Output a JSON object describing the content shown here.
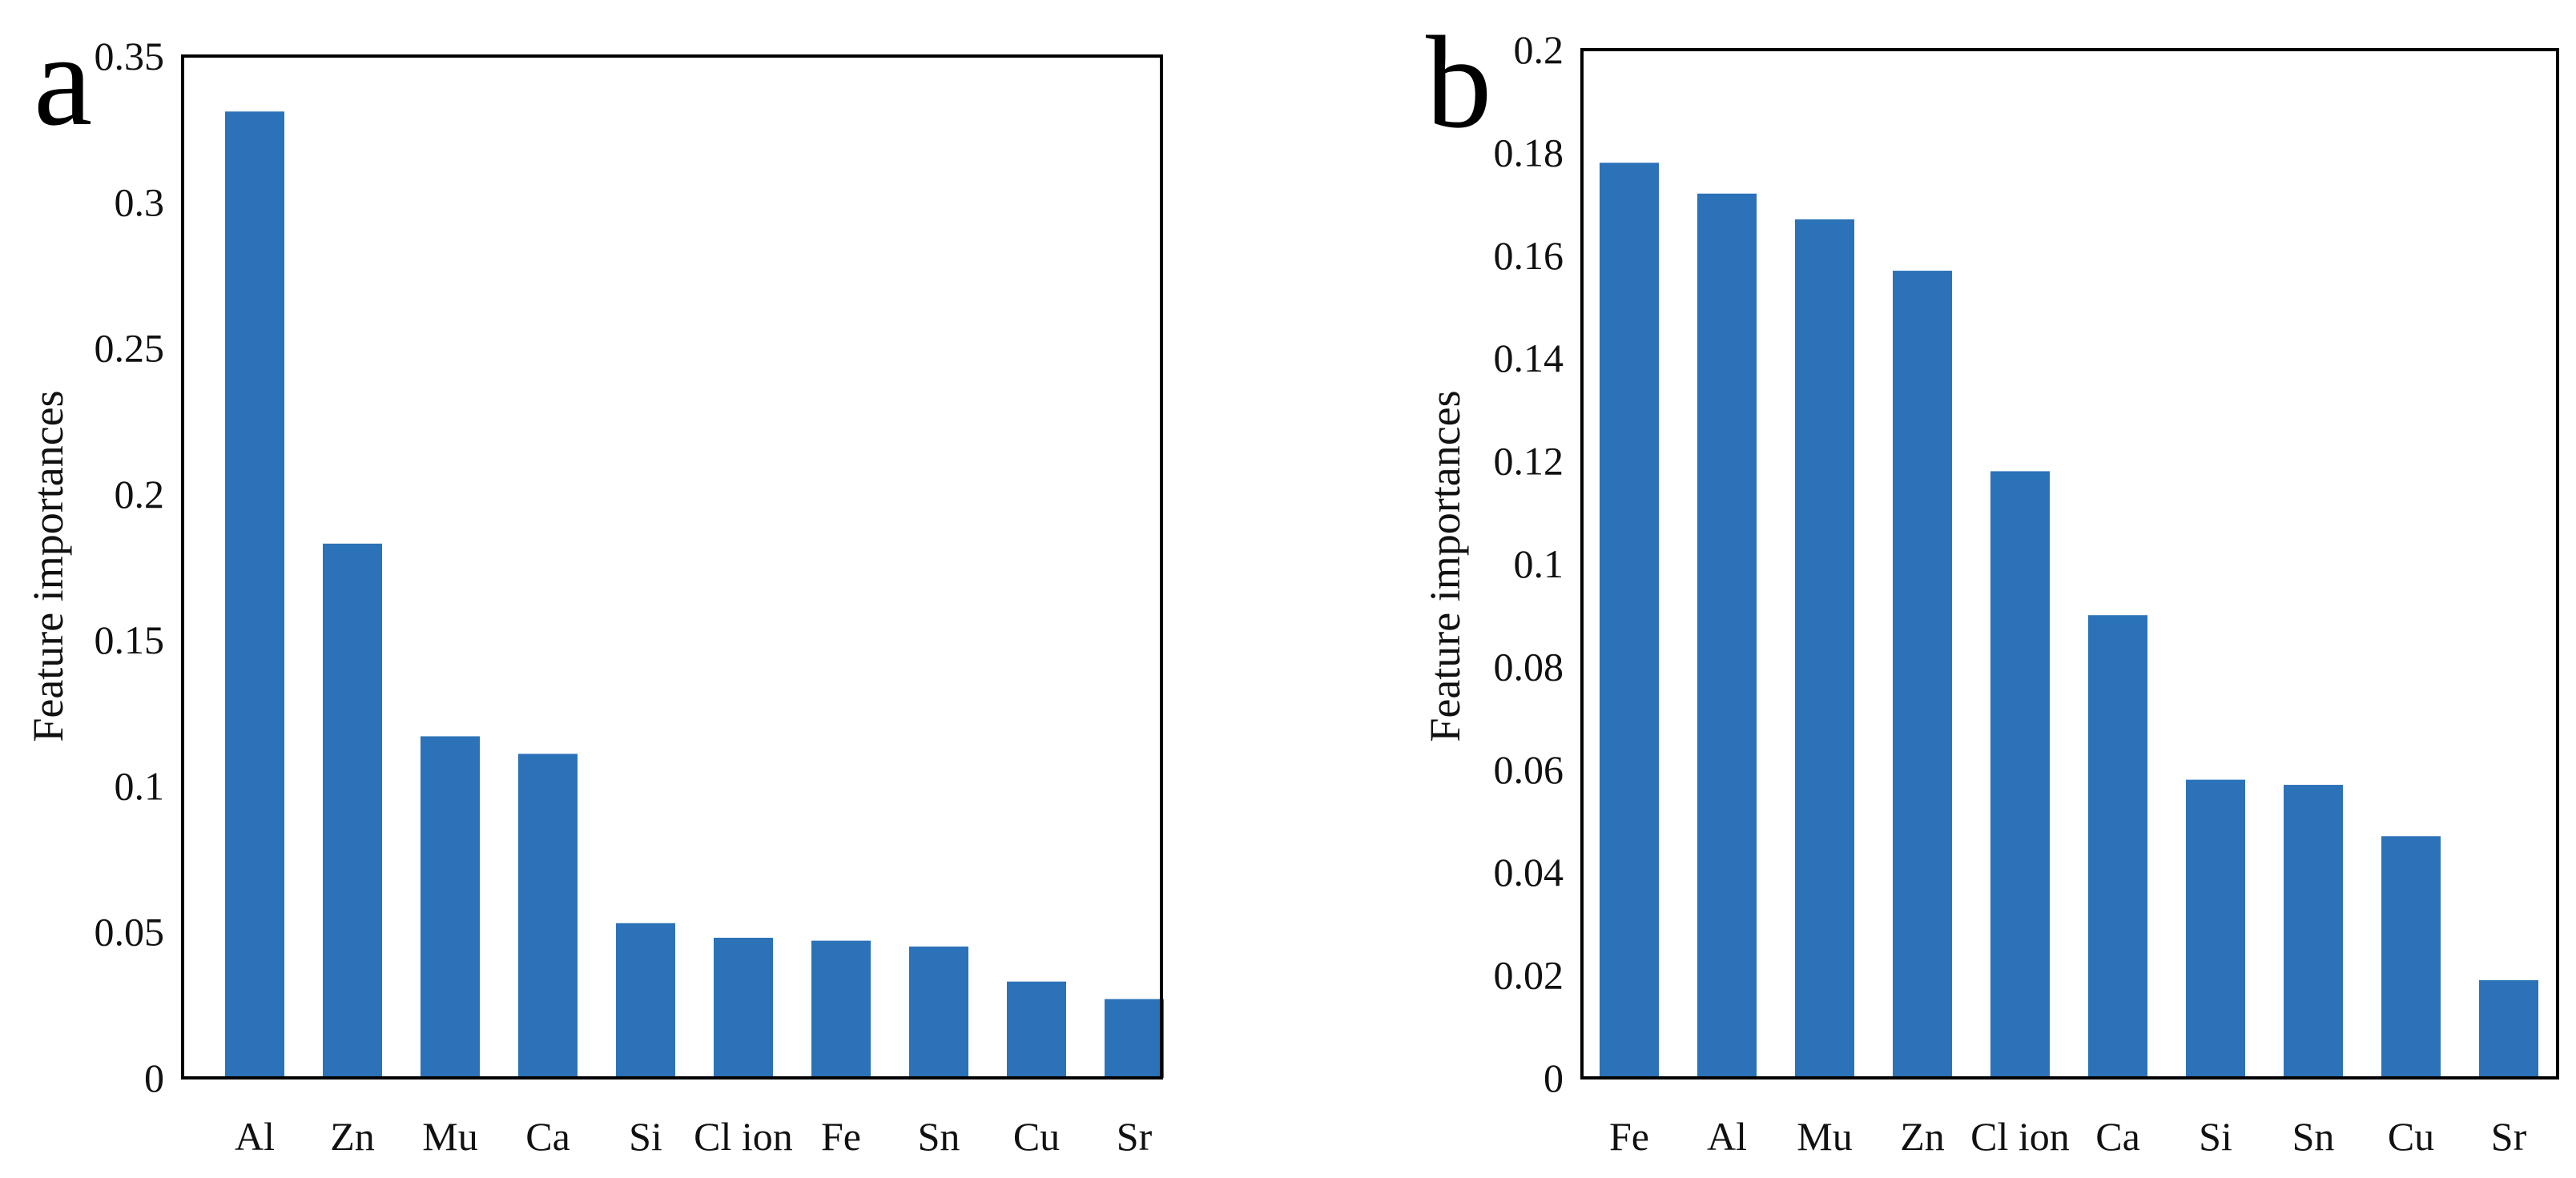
{
  "figure": {
    "colors": {
      "bar": "#2b72b8",
      "frame": "#000000",
      "text": "#111111"
    }
  },
  "chart_data": [
    {
      "type": "bar",
      "panel": "a",
      "title": "",
      "xlabel": "",
      "ylabel": "Feature importances",
      "ylim": [
        0,
        0.35
      ],
      "yticks": [
        0,
        0.05,
        0.1,
        0.15,
        0.2,
        0.25,
        0.3,
        0.35
      ],
      "ytick_labels": [
        "0",
        "0.05",
        "0.1",
        "0.15",
        "0.2",
        "0.25",
        "0.3",
        "0.35"
      ],
      "categories": [
        "Al",
        "Zn",
        "Mu",
        "Ca",
        "Si",
        "Cl ion",
        "Fe",
        "Sn",
        "Cu",
        "Sr"
      ],
      "values": [
        0.331,
        0.183,
        0.117,
        0.111,
        0.053,
        0.048,
        0.047,
        0.045,
        0.033,
        0.027
      ],
      "grid": false
    },
    {
      "type": "bar",
      "panel": "b",
      "title": "",
      "xlabel": "",
      "ylabel": "Feature importances",
      "ylim": [
        0,
        0.2
      ],
      "yticks": [
        0,
        0.02,
        0.04,
        0.06,
        0.08,
        0.1,
        0.12,
        0.14,
        0.16,
        0.18,
        0.2
      ],
      "ytick_labels": [
        "0",
        "0.02",
        "0.04",
        "0.06",
        "0.08",
        "0.1",
        "0.12",
        "0.14",
        "0.16",
        "0.18",
        "0.2"
      ],
      "categories": [
        "Fe",
        "Al",
        "Mu",
        "Zn",
        "Cl ion",
        "Ca",
        "Si",
        "Sn",
        "Cu",
        "Sr"
      ],
      "values": [
        0.178,
        0.172,
        0.167,
        0.157,
        0.118,
        0.09,
        0.058,
        0.057,
        0.047,
        0.019
      ],
      "grid": false
    }
  ]
}
